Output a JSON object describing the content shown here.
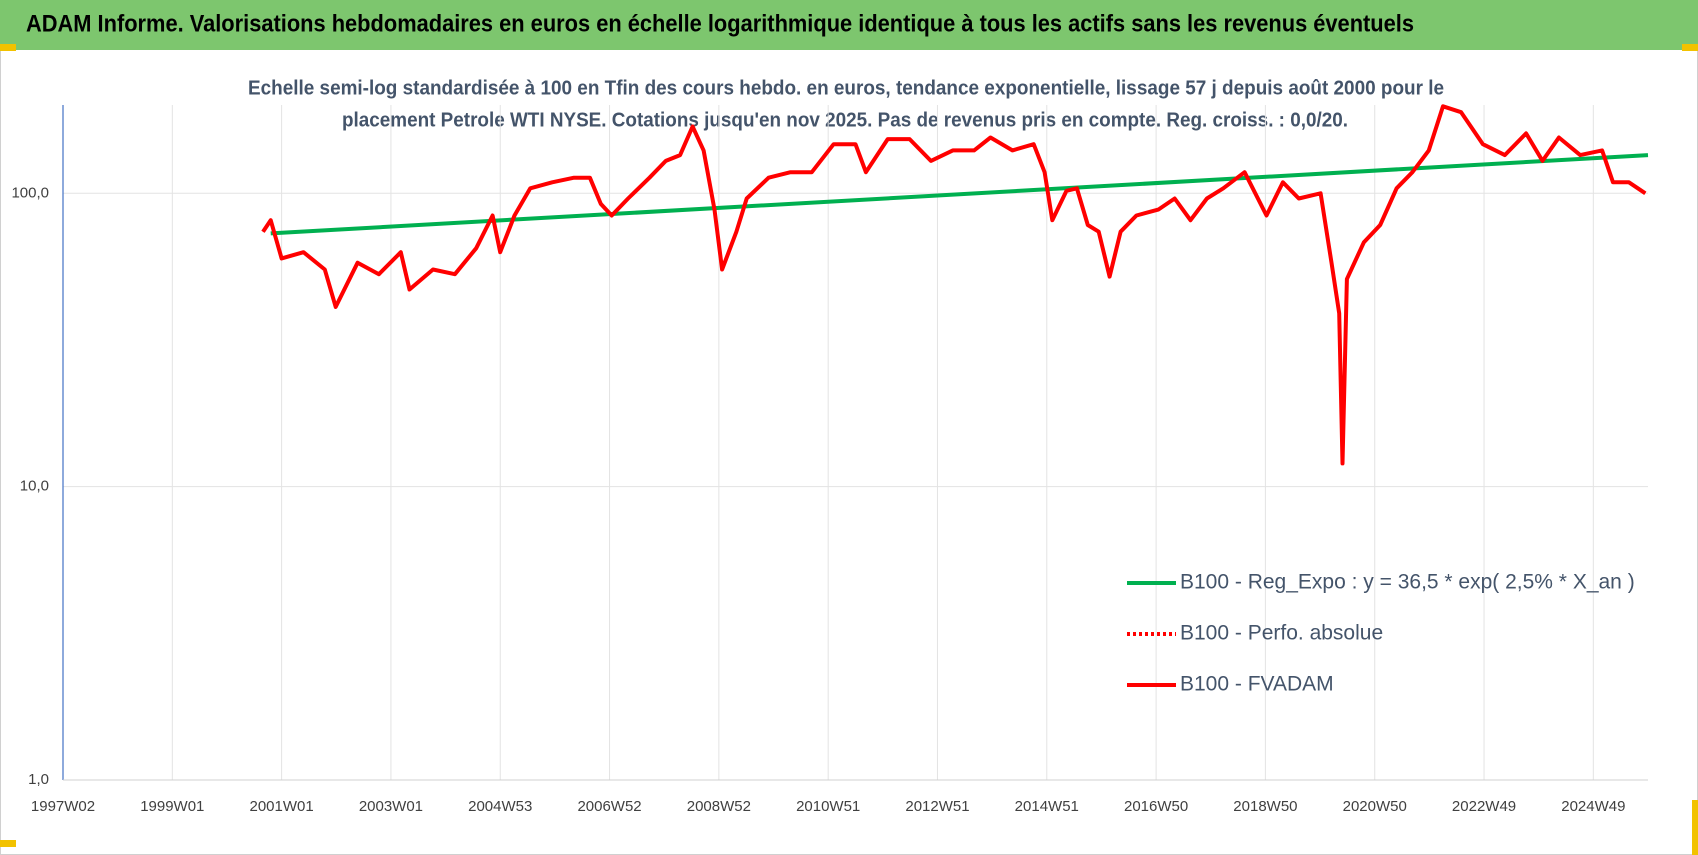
{
  "chart_data": {
    "type": "line",
    "title": "ADAM Informe. Valorisations hebdomadaires en euros en échelle logarithmique identique à tous les actifs sans les revenus éventuels",
    "subtitle": [
      "Echelle semi-log standardisée à 100 en Tfin des cours hebdo. en euros, tendance exponentielle, lissage 57 j depuis août 2000 pour le",
      "placement Petrole WTI NYSE. Cotations jusqu'en nov 2025. Pas de revenus pris en compte. Reg. croiss. : 0,0/20."
    ],
    "log_y": true,
    "grid": true,
    "legend": "right",
    "xlim": [
      1997,
      2026
    ],
    "xticks": [
      {
        "value": 1997,
        "label": "1997W02"
      },
      {
        "value": 1999,
        "label": "1999W01"
      },
      {
        "value": 2001,
        "label": "2001W01"
      },
      {
        "value": 2003,
        "label": "2003W01"
      },
      {
        "value": 2005,
        "label": "2004W53"
      },
      {
        "value": 2007,
        "label": "2006W52"
      },
      {
        "value": 2009,
        "label": "2008W52"
      },
      {
        "value": 2011,
        "label": "2010W51"
      },
      {
        "value": 2013,
        "label": "2012W51"
      },
      {
        "value": 2015,
        "label": "2014W51"
      },
      {
        "value": 2017,
        "label": "2016W50"
      },
      {
        "value": 2019,
        "label": "2018W50"
      },
      {
        "value": 2021,
        "label": "2020W50"
      },
      {
        "value": 2023,
        "label": "2022W49"
      },
      {
        "value": 2025,
        "label": "2024W49"
      }
    ],
    "ylim": [
      1,
      200
    ],
    "yticks": [
      {
        "value": 1,
        "label": "1,0"
      },
      {
        "value": 10,
        "label": "10,0"
      },
      {
        "value": 100,
        "label": "100,0"
      }
    ],
    "series": [
      {
        "name": "B100 - Reg_Expo : y = 36,5 * exp( 2,5% *  X_an )",
        "color": "#00b050",
        "style": "solid",
        "x": [
          2000.8,
          2026.0
        ],
        "values": [
          73,
          135
        ]
      },
      {
        "name": "B100 - Perfo. absolue",
        "color": "#ff0000",
        "style": "dotted",
        "x": [
          2000.66,
          2000.8,
          2001.0,
          2001.4,
          2001.79,
          2001.99,
          2002.39,
          2002.78,
          2003.18,
          2003.34,
          2003.77,
          2004.17,
          2004.56,
          2004.86,
          2005.0,
          2005.26,
          2005.55,
          2005.95,
          2006.35,
          2006.64,
          2006.84,
          2007.04,
          2007.34,
          2007.73,
          2008.03,
          2008.29,
          2008.52,
          2008.72,
          2008.92,
          2009.06,
          2009.32,
          2009.51,
          2009.91,
          2010.31,
          2010.7,
          2011.1,
          2011.5,
          2011.69,
          2012.09,
          2012.49,
          2012.88,
          2013.28,
          2013.67,
          2013.97,
          2014.37,
          2014.76,
          2014.96,
          2015.1,
          2015.36,
          2015.55,
          2015.75,
          2015.95,
          2016.15,
          2016.35,
          2016.64,
          2017.04,
          2017.34,
          2017.63,
          2017.93,
          2018.23,
          2018.62,
          2019.02,
          2019.32,
          2019.61,
          2020.01,
          2020.21,
          2020.35,
          2020.41,
          2020.49,
          2020.8,
          2021.1,
          2021.4,
          2021.69,
          2021.99,
          2022.25,
          2022.58,
          2022.98,
          2023.38,
          2023.77,
          2024.07,
          2024.37,
          2024.76,
          2025.16,
          2025.36,
          2025.65,
          2025.95
        ],
        "values": [
          74,
          81,
          60,
          63,
          55,
          41,
          58,
          53,
          63,
          47,
          55,
          53,
          65,
          84,
          63,
          84,
          104,
          109,
          113,
          113,
          92,
          84,
          96,
          113,
          129,
          135,
          169,
          140,
          88,
          55,
          74,
          96,
          113,
          118,
          118,
          147,
          147,
          118,
          153,
          153,
          129,
          140,
          140,
          155,
          140,
          147,
          118,
          81,
          102,
          104,
          78,
          74,
          52,
          74,
          84,
          88,
          96,
          81,
          96,
          104,
          118,
          84,
          109,
          96,
          100,
          58,
          39,
          12,
          51,
          68,
          78,
          104,
          118,
          140,
          198,
          189,
          147,
          135,
          160,
          129,
          155,
          135,
          140,
          109,
          109,
          100
        ]
      },
      {
        "name": "B100 - FVADAM",
        "color": "#ff0000",
        "style": "solid",
        "x": [
          2000.66,
          2000.8,
          2001.0,
          2001.4,
          2001.79,
          2001.99,
          2002.39,
          2002.78,
          2003.18,
          2003.34,
          2003.77,
          2004.17,
          2004.56,
          2004.86,
          2005.0,
          2005.26,
          2005.55,
          2005.95,
          2006.35,
          2006.64,
          2006.84,
          2007.04,
          2007.34,
          2007.73,
          2008.03,
          2008.29,
          2008.52,
          2008.72,
          2008.92,
          2009.06,
          2009.32,
          2009.51,
          2009.91,
          2010.31,
          2010.7,
          2011.1,
          2011.5,
          2011.69,
          2012.09,
          2012.49,
          2012.88,
          2013.28,
          2013.67,
          2013.97,
          2014.37,
          2014.76,
          2014.96,
          2015.1,
          2015.36,
          2015.55,
          2015.75,
          2015.95,
          2016.15,
          2016.35,
          2016.64,
          2017.04,
          2017.34,
          2017.63,
          2017.93,
          2018.23,
          2018.62,
          2019.02,
          2019.32,
          2019.61,
          2020.01,
          2020.21,
          2020.35,
          2020.41,
          2020.49,
          2020.8,
          2021.1,
          2021.4,
          2021.69,
          2021.99,
          2022.25,
          2022.58,
          2022.98,
          2023.38,
          2023.77,
          2024.07,
          2024.37,
          2024.76,
          2025.16,
          2025.36,
          2025.65,
          2025.95
        ],
        "values": [
          74,
          81,
          60,
          63,
          55,
          41,
          58,
          53,
          63,
          47,
          55,
          53,
          65,
          84,
          63,
          84,
          104,
          109,
          113,
          113,
          92,
          84,
          96,
          113,
          129,
          135,
          169,
          140,
          88,
          55,
          74,
          96,
          113,
          118,
          118,
          147,
          147,
          118,
          153,
          153,
          129,
          140,
          140,
          155,
          140,
          147,
          118,
          81,
          102,
          104,
          78,
          74,
          52,
          74,
          84,
          88,
          96,
          81,
          96,
          104,
          118,
          84,
          109,
          96,
          100,
          58,
          39,
          12,
          51,
          68,
          78,
          104,
          118,
          140,
          198,
          189,
          147,
          135,
          160,
          129,
          155,
          135,
          140,
          109,
          109,
          100
        ]
      }
    ]
  }
}
